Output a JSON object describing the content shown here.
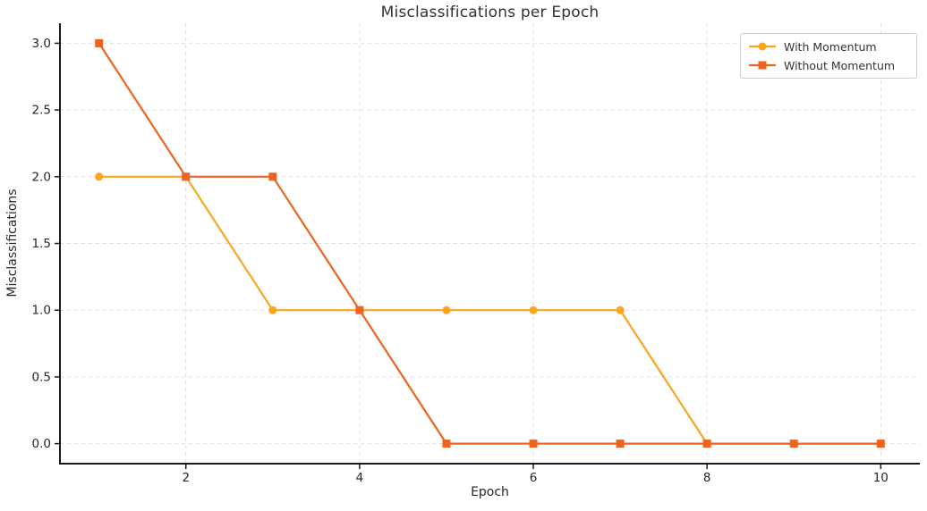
{
  "chart_data": {
    "type": "line",
    "title": "Misclassifications per Epoch",
    "xlabel": "Epoch",
    "ylabel": "Misclassifications",
    "x": [
      1,
      2,
      3,
      4,
      5,
      6,
      7,
      8,
      9,
      10
    ],
    "series": [
      {
        "name": "With Momentum",
        "values": [
          2,
          2,
          1,
          1,
          1,
          1,
          1,
          0,
          0,
          0
        ],
        "color": "#FBA51D",
        "marker": "circle"
      },
      {
        "name": "Without Momentum",
        "values": [
          3,
          2,
          2,
          1,
          0,
          0,
          0,
          0,
          0,
          0
        ],
        "color": "#ED6320",
        "marker": "square"
      }
    ],
    "xlim": [
      0.55,
      10.45
    ],
    "ylim": [
      -0.15,
      3.15
    ],
    "xticks": [
      2,
      4,
      6,
      8,
      10
    ],
    "xtick_labels": [
      "2",
      "4",
      "6",
      "8",
      "10"
    ],
    "yticks": [
      0.0,
      0.5,
      1.0,
      1.5,
      2.0,
      2.5,
      3.0
    ],
    "ytick_labels": [
      "0.0",
      "0.5",
      "1.0",
      "1.5",
      "2.0",
      "2.5",
      "3.0"
    ],
    "grid": {
      "on": true,
      "style": "dashed",
      "color": "#dcdcdc"
    },
    "legend": {
      "position": "upper right"
    },
    "axis_color": "#1a1a1a",
    "tick_text_color": "#262626",
    "background": "#ffffff"
  }
}
